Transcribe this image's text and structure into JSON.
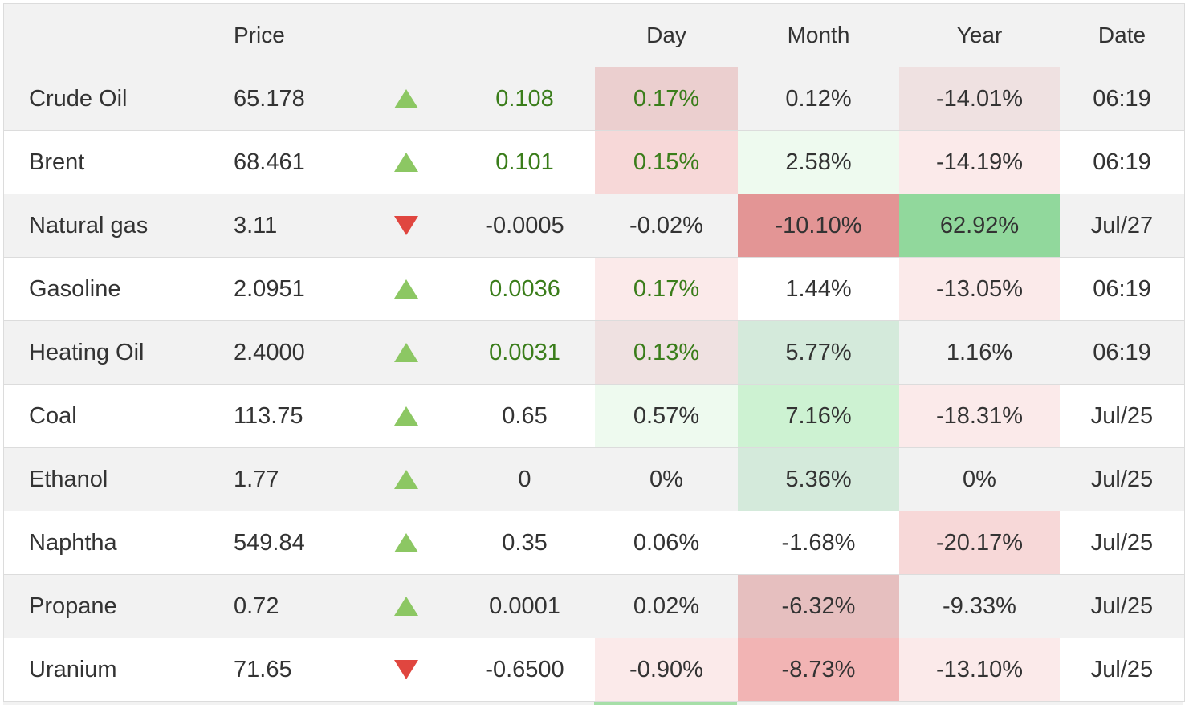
{
  "header": {
    "name": "",
    "price": "Price",
    "arrow": "",
    "change": "",
    "day": "Day",
    "month": "Month",
    "year": "Year",
    "date": "Date"
  },
  "colors": {
    "row_alt": "#f2f2f2",
    "up_arrow": "#8cc763",
    "down_arrow": "#e0463f",
    "positive_text": "#3a7d1a"
  },
  "rows": [
    {
      "name": "Crude Oil",
      "price": "65.178",
      "direction": "up",
      "change": "0.108",
      "day": "0.17%",
      "month": "0.12%",
      "year": "-14.01%",
      "date": "06:19",
      "green": true,
      "day_bg": "#ebcfcf",
      "month_bg": "",
      "year_bg": "#efe1e1"
    },
    {
      "name": "Brent",
      "price": "68.461",
      "direction": "up",
      "change": "0.101",
      "day": "0.15%",
      "month": "2.58%",
      "year": "-14.19%",
      "date": "06:19",
      "green": true,
      "day_bg": "#f7d8d8",
      "month_bg": "#eefaef",
      "year_bg": "#fbeaea"
    },
    {
      "name": "Natural gas",
      "price": "3.11",
      "direction": "down",
      "change": "-0.0005",
      "day": "-0.02%",
      "month": "-10.10%",
      "year": "62.92%",
      "date": "Jul/27",
      "green": false,
      "day_bg": "",
      "month_bg": "#e39595",
      "year_bg": "#91d89c"
    },
    {
      "name": "Gasoline",
      "price": "2.0951",
      "direction": "up",
      "change": "0.0036",
      "day": "0.17%",
      "month": "1.44%",
      "year": "-13.05%",
      "date": "06:19",
      "green": true,
      "day_bg": "#fbeaea",
      "month_bg": "",
      "year_bg": "#fbeaea"
    },
    {
      "name": "Heating Oil",
      "price": "2.4000",
      "direction": "up",
      "change": "0.0031",
      "day": "0.13%",
      "month": "5.77%",
      "year": "1.16%",
      "date": "06:19",
      "green": true,
      "day_bg": "#efe1e1",
      "month_bg": "#d4eadb",
      "year_bg": ""
    },
    {
      "name": "Coal",
      "price": "113.75",
      "direction": "up",
      "change": "0.65",
      "day": "0.57%",
      "month": "7.16%",
      "year": "-18.31%",
      "date": "Jul/25",
      "green": false,
      "day_bg": "#eefaef",
      "month_bg": "#cdf2d2",
      "year_bg": "#fbeaea"
    },
    {
      "name": "Ethanol",
      "price": "1.77",
      "direction": "up",
      "change": "0",
      "day": "0%",
      "month": "5.36%",
      "year": "0%",
      "date": "Jul/25",
      "green": false,
      "day_bg": "",
      "month_bg": "#d4eadb",
      "year_bg": ""
    },
    {
      "name": "Naphtha",
      "price": "549.84",
      "direction": "up",
      "change": "0.35",
      "day": "0.06%",
      "month": "-1.68%",
      "year": "-20.17%",
      "date": "Jul/25",
      "green": false,
      "day_bg": "",
      "month_bg": "",
      "year_bg": "#f7d8d8"
    },
    {
      "name": "Propane",
      "price": "0.72",
      "direction": "up",
      "change": "0.0001",
      "day": "0.02%",
      "month": "-6.32%",
      "year": "-9.33%",
      "date": "Jul/25",
      "green": false,
      "day_bg": "",
      "month_bg": "#e6bfbf",
      "year_bg": ""
    },
    {
      "name": "Uranium",
      "price": "71.65",
      "direction": "down",
      "change": "-0.6500",
      "day": "-0.90%",
      "month": "-8.73%",
      "year": "-13.10%",
      "date": "Jul/25",
      "green": false,
      "day_bg": "#fbeaea",
      "month_bg": "#f2b4b4",
      "year_bg": "#fbeaea"
    }
  ]
}
